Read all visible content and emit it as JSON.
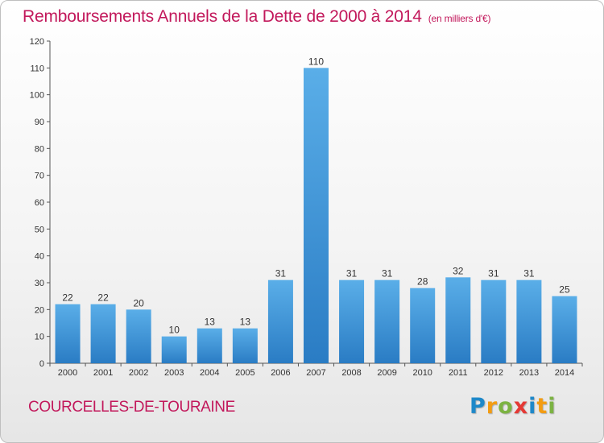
{
  "header": {
    "title": "Remboursements Annuels de la Dette de 2000 à 2014",
    "subtitle": "(en milliers d'€)"
  },
  "footer": {
    "commune": "COURCELLES-DE-TOURAINE"
  },
  "logo": {
    "letters": [
      {
        "char": "P",
        "color": "#1e88c9"
      },
      {
        "char": "r",
        "color": "#f39c12"
      },
      {
        "char": "o",
        "color": "#7cb342"
      },
      {
        "char": "x",
        "color": "#e53935"
      },
      {
        "char": "i",
        "color": "#1e88c9"
      },
      {
        "char": "t",
        "color": "#f39c12"
      },
      {
        "char": "i",
        "color": "#7cb342"
      }
    ]
  },
  "colors": {
    "accent": "#c2185b",
    "bar_top": "#5aaee8",
    "bar_bottom": "#2a7cc4"
  },
  "chart_data": {
    "type": "bar",
    "categories": [
      "2000",
      "2001",
      "2002",
      "2003",
      "2004",
      "2005",
      "2006",
      "2007",
      "2008",
      "2009",
      "2010",
      "2011",
      "2012",
      "2013",
      "2014"
    ],
    "values": [
      22,
      22,
      20,
      10,
      13,
      13,
      31,
      110,
      31,
      31,
      28,
      32,
      31,
      31,
      25
    ],
    "yticks": [
      0,
      10,
      20,
      30,
      40,
      50,
      60,
      70,
      80,
      90,
      100,
      110,
      120
    ],
    "ylim": [
      0,
      120
    ],
    "grid": false,
    "data_labels": true
  }
}
